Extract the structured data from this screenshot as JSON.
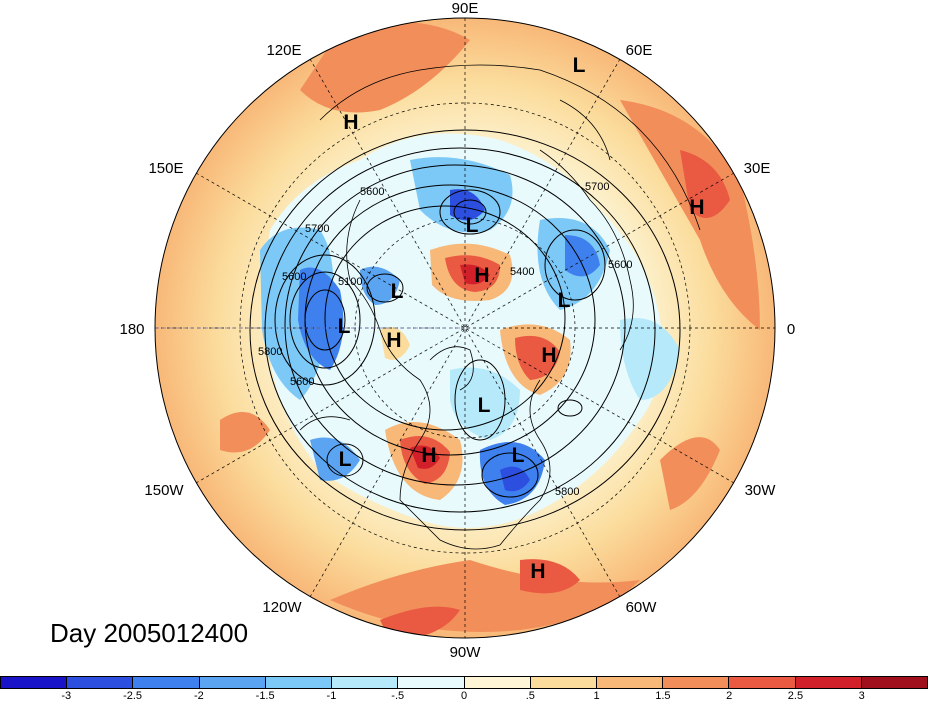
{
  "title": "Day 2005012400",
  "longitude_labels": {
    "lon_90e": "90E",
    "lon_60e": "60E",
    "lon_30e": "30E",
    "lon_0": "0",
    "lon_30w": "30W",
    "lon_60w": "60W",
    "lon_90w": "90W",
    "lon_120w": "120W",
    "lon_150w": "150W",
    "lon_180": "180",
    "lon_150e": "150E",
    "lon_120e": "120E"
  },
  "contour_labels": {
    "c5600a": "5600",
    "c5700a": "5700",
    "c5600b": "5600",
    "c5100": "5100",
    "c5800a": "5800",
    "c5600c": "5600",
    "c5400": "5400",
    "c5700b": "5700",
    "c5600d": "5600",
    "c5800b": "5800"
  },
  "systems": {
    "sys1": "L",
    "sys2": "H",
    "sys3": "L",
    "sys4": "H",
    "sys5": "L",
    "sys6": "H",
    "sys7": "L",
    "sys8": "H",
    "sys9": "L",
    "sys10": "L",
    "sys11": "H",
    "sys12": "L",
    "sys13": "L",
    "sys14": "H",
    "sys15": "H"
  },
  "colorbar": {
    "colors": [
      "#1a14c8",
      "#2d4fe0",
      "#3d80ee",
      "#5aa4f2",
      "#7cc8f6",
      "#b6eafa",
      "#e8fafc",
      "#fdf5d6",
      "#fbdc9c",
      "#f8b878",
      "#f28e5a",
      "#ea5a42",
      "#d2202a",
      "#a0101c"
    ],
    "labels": [
      "-3",
      "-2.5",
      "-2",
      "-1.5",
      "-1",
      "-.5",
      "0",
      ".5",
      "1",
      "1.5",
      "2",
      "2.5",
      "3"
    ]
  }
}
